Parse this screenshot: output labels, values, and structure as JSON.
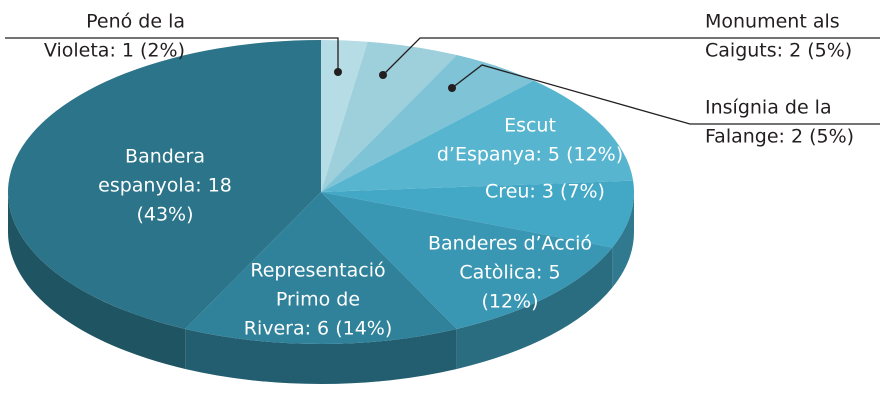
{
  "chart_data": {
    "type": "pie3d",
    "values": [
      1,
      2,
      2,
      5,
      3,
      5,
      6,
      18
    ],
    "value_labels": [
      [
        "Penó de la",
        "Violeta: 1 (2%)"
      ],
      [
        "Monument als",
        "Caiguts: 2 (5%)"
      ],
      [
        "Insígnia de la",
        "Falange: 2 (5%)"
      ],
      [
        "Escut",
        "d’Espanya: 5 (12%)"
      ],
      [
        "Creu: 3 (7%)"
      ],
      [
        "Banderes d’Acció",
        "Catòlica: 5",
        "(12%)"
      ],
      [
        "Representació",
        "Primo de",
        "Rivera: 6 (14%)"
      ],
      [
        "Bandera",
        "espanyola: 18",
        "(43%)"
      ]
    ],
    "colors": [
      "#b6dce5",
      "#9ed0dc",
      "#7ec3d6",
      "#58b5cf",
      "#43a8c6",
      "#3a97b3",
      "#30829b",
      "#2b7489"
    ]
  }
}
